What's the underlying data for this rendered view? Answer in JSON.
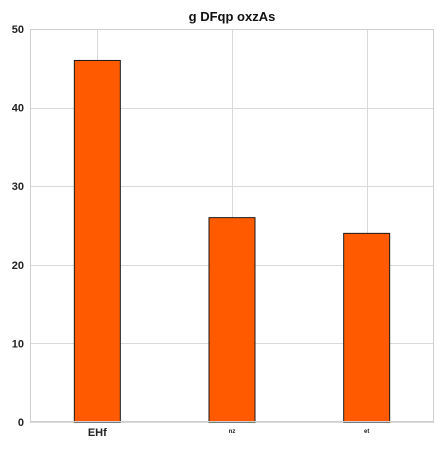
{
  "chart_data": {
    "type": "bar",
    "title": "g  DFqp oxzAs",
    "xlabel": "",
    "ylabel": "",
    "categories": [
      "EHf",
      "nz",
      "et"
    ],
    "values": [
      46,
      26,
      24
    ],
    "ylim": [
      0,
      50
    ],
    "yticks": [
      0,
      10,
      20,
      30,
      40,
      50
    ],
    "grid": true,
    "colors": {
      "bar_fill": "#ff5a00",
      "bar_edge": "#1a1a1a"
    }
  }
}
